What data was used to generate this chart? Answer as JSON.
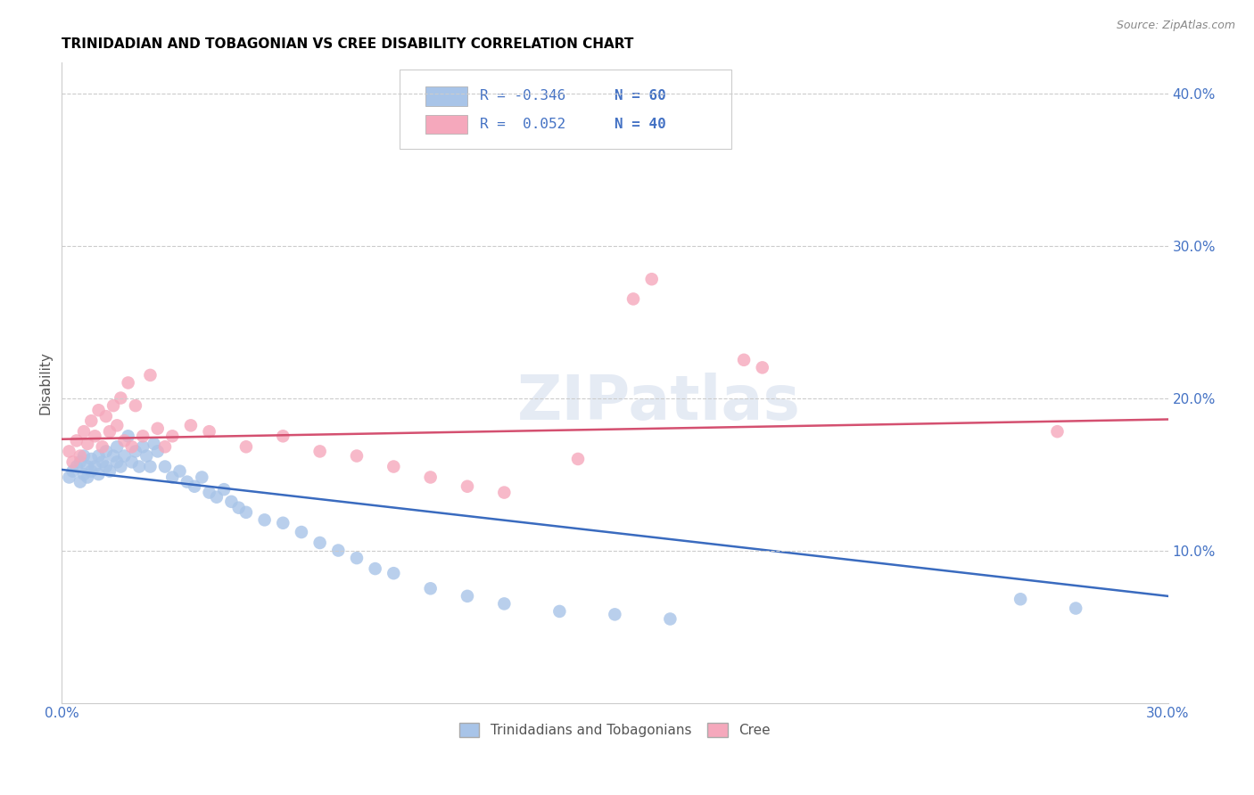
{
  "title": "TRINIDADIAN AND TOBAGONIAN VS CREE DISABILITY CORRELATION CHART",
  "source": "Source: ZipAtlas.com",
  "ylabel": "Disability",
  "xlim": [
    0.0,
    0.3
  ],
  "ylim": [
    0.0,
    0.42
  ],
  "color_blue": "#a8c4e8",
  "color_pink": "#f5a8bc",
  "line_color_blue": "#3a6bbf",
  "line_color_pink": "#d45070",
  "watermark": "ZIPatlas",
  "legend_R1": "-0.346",
  "legend_N1": "60",
  "legend_R2": "0.052",
  "legend_N2": "40",
  "legend_label1": "Trinidadians and Tobagonians",
  "legend_label2": "Cree",
  "blue_points_x": [
    0.002,
    0.003,
    0.004,
    0.005,
    0.005,
    0.006,
    0.006,
    0.007,
    0.007,
    0.008,
    0.008,
    0.009,
    0.01,
    0.01,
    0.011,
    0.012,
    0.012,
    0.013,
    0.014,
    0.015,
    0.015,
    0.016,
    0.017,
    0.018,
    0.019,
    0.02,
    0.021,
    0.022,
    0.023,
    0.024,
    0.025,
    0.026,
    0.028,
    0.03,
    0.032,
    0.034,
    0.036,
    0.038,
    0.04,
    0.042,
    0.044,
    0.046,
    0.048,
    0.05,
    0.055,
    0.06,
    0.065,
    0.07,
    0.075,
    0.08,
    0.085,
    0.09,
    0.1,
    0.11,
    0.12,
    0.135,
    0.15,
    0.165,
    0.26,
    0.275
  ],
  "blue_points_y": [
    0.148,
    0.152,
    0.155,
    0.145,
    0.158,
    0.15,
    0.162,
    0.148,
    0.155,
    0.152,
    0.16,
    0.155,
    0.162,
    0.15,
    0.158,
    0.155,
    0.165,
    0.152,
    0.162,
    0.158,
    0.168,
    0.155,
    0.162,
    0.175,
    0.158,
    0.165,
    0.155,
    0.168,
    0.162,
    0.155,
    0.17,
    0.165,
    0.155,
    0.148,
    0.152,
    0.145,
    0.142,
    0.148,
    0.138,
    0.135,
    0.14,
    0.132,
    0.128,
    0.125,
    0.12,
    0.118,
    0.112,
    0.105,
    0.1,
    0.095,
    0.088,
    0.085,
    0.075,
    0.07,
    0.065,
    0.06,
    0.058,
    0.055,
    0.068,
    0.062
  ],
  "pink_points_x": [
    0.002,
    0.003,
    0.004,
    0.005,
    0.006,
    0.007,
    0.008,
    0.009,
    0.01,
    0.011,
    0.012,
    0.013,
    0.014,
    0.015,
    0.016,
    0.017,
    0.018,
    0.019,
    0.02,
    0.022,
    0.024,
    0.026,
    0.028,
    0.03,
    0.035,
    0.04,
    0.05,
    0.06,
    0.07,
    0.08,
    0.09,
    0.1,
    0.11,
    0.12,
    0.14,
    0.155,
    0.16,
    0.185,
    0.19,
    0.27
  ],
  "pink_points_y": [
    0.165,
    0.158,
    0.172,
    0.162,
    0.178,
    0.17,
    0.185,
    0.175,
    0.192,
    0.168,
    0.188,
    0.178,
    0.195,
    0.182,
    0.2,
    0.172,
    0.21,
    0.168,
    0.195,
    0.175,
    0.215,
    0.18,
    0.168,
    0.175,
    0.182,
    0.178,
    0.168,
    0.175,
    0.165,
    0.162,
    0.155,
    0.148,
    0.142,
    0.138,
    0.16,
    0.265,
    0.278,
    0.225,
    0.22,
    0.178
  ]
}
